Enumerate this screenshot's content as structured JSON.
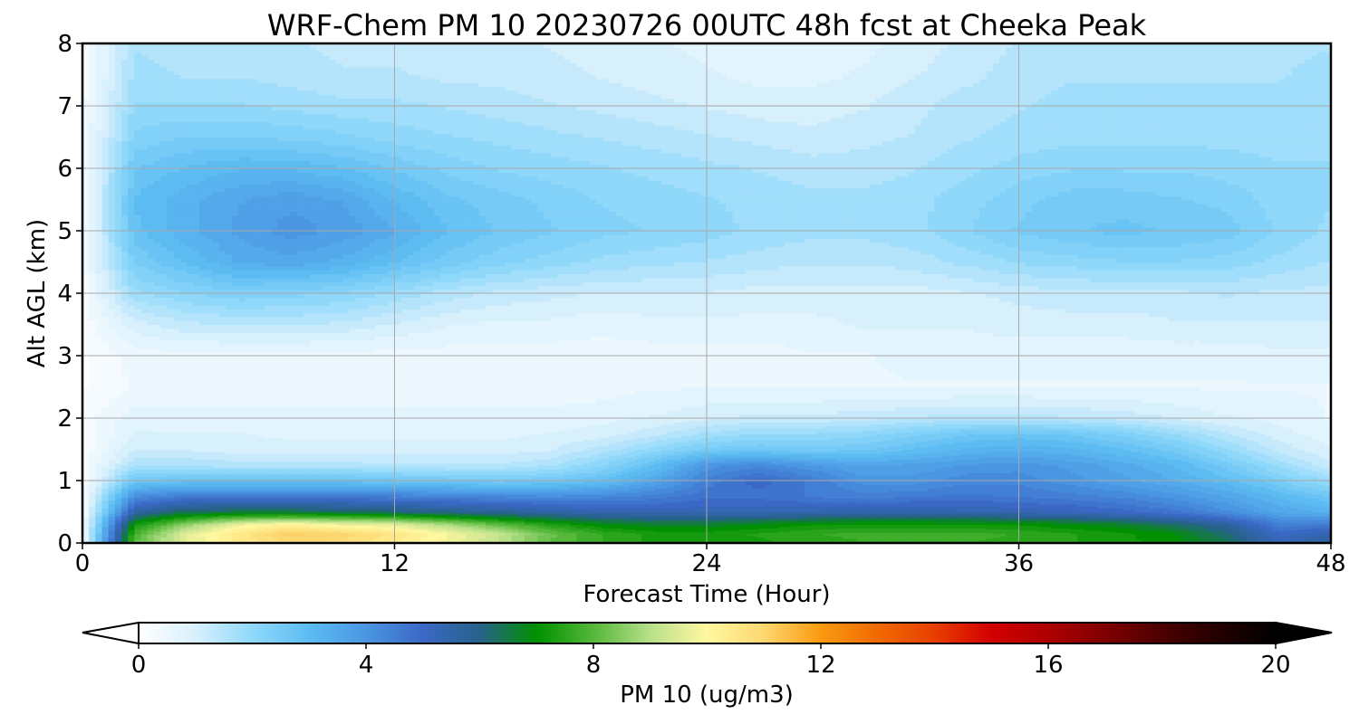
{
  "chart_data": {
    "type": "heatmap",
    "title": "WRF-Chem PM 10  20230726 00UTC 48h fcst at Cheeka Peak",
    "xlabel": "Forecast Time (Hour)",
    "ylabel": "Alt AGL (km)",
    "xlim": [
      0,
      48
    ],
    "ylim": [
      0,
      8
    ],
    "xticks": [
      0,
      12,
      24,
      36,
      48
    ],
    "yticks": [
      0,
      1,
      2,
      3,
      4,
      5,
      6,
      7,
      8
    ],
    "grid": true,
    "x_hours": [
      0,
      2,
      4,
      6,
      8,
      10,
      12,
      14,
      16,
      18,
      20,
      22,
      24,
      26,
      28,
      30,
      32,
      34,
      36,
      38,
      40,
      42,
      44,
      46,
      48
    ],
    "y_km": [
      0,
      0.15,
      0.3,
      0.5,
      0.75,
      1.0,
      1.25,
      1.5,
      1.75,
      2.0,
      2.5,
      3.0,
      3.5,
      4.0,
      4.5,
      5.0,
      5.5,
      6.0,
      6.5,
      7.0,
      7.5,
      8.0
    ],
    "pm10_ugm3": [
      [
        0.3,
        8.2,
        9.6,
        10.4,
        10.8,
        10.8,
        10.3,
        9.8,
        9.1,
        8.1,
        7.6,
        7.3,
        7.2,
        7.3,
        7.5,
        7.6,
        7.6,
        7.6,
        7.6,
        7.4,
        7.2,
        7.0,
        6.4,
        5.3,
        5.8
      ],
      [
        0.3,
        7.8,
        9.6,
        10.5,
        11.2,
        11.0,
        10.6,
        9.9,
        9.2,
        8.2,
        7.6,
        7.3,
        7.3,
        7.4,
        7.6,
        7.7,
        7.7,
        7.7,
        7.6,
        7.4,
        7.2,
        6.9,
        6.2,
        5.0,
        5.4
      ],
      [
        0.3,
        7.2,
        8.6,
        9.8,
        10.2,
        9.8,
        9.6,
        8.9,
        8.1,
        7.4,
        6.9,
        6.7,
        6.7,
        6.9,
        7.1,
        7.2,
        7.2,
        7.2,
        7.1,
        6.9,
        6.7,
        6.3,
        5.7,
        4.5,
        4.6
      ],
      [
        0.2,
        5.6,
        6.4,
        6.5,
        6.5,
        6.4,
        6.2,
        6.0,
        5.8,
        5.6,
        5.4,
        5.3,
        5.3,
        5.3,
        5.4,
        5.5,
        5.5,
        5.4,
        5.3,
        5.2,
        5.0,
        4.7,
        4.2,
        3.6,
        3.3
      ],
      [
        0.2,
        4.2,
        4.6,
        4.6,
        4.6,
        4.6,
        4.5,
        4.4,
        4.3,
        4.2,
        4.3,
        4.5,
        4.8,
        4.8,
        4.6,
        4.5,
        4.6,
        4.7,
        4.6,
        4.5,
        4.3,
        4.0,
        3.6,
        3.1,
        2.6
      ],
      [
        0.2,
        2.6,
        2.8,
        2.8,
        2.8,
        2.8,
        2.7,
        2.6,
        2.5,
        2.6,
        2.9,
        3.6,
        4.5,
        5.0,
        4.6,
        4.0,
        4.0,
        4.3,
        4.3,
        4.0,
        3.7,
        3.4,
        3.0,
        2.4,
        1.8
      ],
      [
        0.2,
        1.6,
        1.6,
        1.5,
        1.5,
        1.5,
        1.4,
        1.4,
        1.4,
        1.6,
        2.1,
        2.9,
        4.0,
        4.3,
        3.9,
        3.6,
        3.7,
        3.9,
        4.0,
        3.8,
        3.5,
        3.1,
        2.5,
        1.8,
        1.2
      ],
      [
        0.2,
        1.1,
        1.1,
        1.0,
        1.0,
        1.0,
        1.0,
        1.0,
        1.0,
        1.1,
        1.5,
        2.0,
        2.5,
        2.6,
        2.5,
        2.6,
        2.9,
        3.2,
        3.3,
        3.2,
        2.9,
        2.5,
        1.9,
        1.3,
        0.9
      ],
      [
        0.2,
        0.9,
        0.9,
        0.9,
        0.8,
        0.8,
        0.8,
        0.8,
        0.8,
        0.9,
        1.0,
        1.3,
        1.7,
        1.9,
        1.9,
        2.0,
        2.3,
        2.6,
        2.7,
        2.6,
        2.3,
        1.9,
        1.4,
        1.0,
        0.7
      ],
      [
        0.2,
        0.8,
        0.7,
        0.7,
        0.7,
        0.7,
        0.7,
        0.7,
        0.7,
        0.7,
        0.8,
        0.9,
        1.1,
        1.2,
        1.2,
        1.3,
        1.4,
        1.5,
        1.5,
        1.4,
        1.3,
        1.1,
        0.9,
        0.8,
        0.6
      ],
      [
        0.1,
        0.4,
        0.5,
        0.5,
        0.5,
        0.5,
        0.5,
        0.5,
        0.5,
        0.5,
        0.5,
        0.6,
        0.6,
        0.6,
        0.6,
        0.6,
        0.6,
        0.6,
        0.6,
        0.6,
        0.6,
        0.6,
        0.6,
        0.6,
        0.6
      ],
      [
        0.1,
        0.5,
        0.5,
        0.5,
        0.5,
        0.5,
        0.5,
        0.5,
        0.5,
        0.5,
        0.5,
        0.5,
        0.5,
        0.5,
        0.6,
        0.6,
        0.7,
        0.7,
        0.7,
        0.7,
        0.7,
        0.7,
        0.7,
        0.8,
        0.8
      ],
      [
        0.2,
        1.0,
        1.3,
        1.4,
        1.4,
        1.3,
        1.1,
        0.9,
        0.8,
        0.8,
        0.7,
        0.8,
        0.8,
        0.8,
        0.8,
        0.9,
        0.9,
        0.9,
        1.0,
        1.0,
        1.0,
        1.1,
        1.1,
        1.1,
        1.1
      ],
      [
        0.2,
        1.8,
        2.1,
        2.3,
        2.2,
        2.1,
        1.8,
        1.5,
        1.3,
        1.2,
        1.1,
        1.1,
        1.1,
        1.0,
        1.0,
        1.0,
        1.0,
        1.1,
        1.2,
        1.3,
        1.3,
        1.3,
        1.4,
        1.3,
        1.3
      ],
      [
        0.3,
        2.4,
        2.9,
        3.4,
        3.5,
        3.3,
        2.9,
        2.5,
        2.2,
        2.0,
        1.8,
        1.7,
        1.6,
        1.5,
        1.4,
        1.4,
        1.5,
        1.7,
        1.9,
        2.0,
        2.1,
        2.1,
        2.0,
        1.8,
        1.6
      ],
      [
        0.3,
        2.8,
        3.3,
        3.7,
        4.0,
        3.8,
        3.4,
        2.9,
        2.6,
        2.4,
        2.2,
        2.1,
        2.0,
        1.8,
        1.7,
        1.7,
        1.8,
        2.1,
        2.4,
        2.6,
        2.7,
        2.6,
        2.5,
        2.1,
        1.8
      ],
      [
        0.3,
        2.9,
        3.3,
        3.6,
        3.8,
        3.6,
        3.1,
        2.7,
        2.5,
        2.3,
        2.1,
        2.0,
        1.9,
        1.8,
        1.7,
        1.7,
        1.8,
        2.0,
        2.3,
        2.5,
        2.5,
        2.4,
        2.3,
        2.0,
        1.9
      ],
      [
        0.3,
        2.6,
        2.9,
        3.1,
        3.1,
        2.9,
        2.6,
        2.3,
        2.1,
        2.0,
        1.9,
        1.8,
        1.7,
        1.6,
        1.5,
        1.5,
        1.6,
        1.8,
        2.0,
        2.1,
        2.1,
        2.1,
        2.0,
        1.9,
        1.9
      ],
      [
        0.3,
        2.2,
        2.4,
        2.4,
        2.3,
        2.2,
        2.0,
        1.9,
        1.8,
        1.7,
        1.6,
        1.5,
        1.4,
        1.3,
        1.2,
        1.3,
        1.4,
        1.6,
        1.7,
        1.8,
        1.8,
        1.8,
        1.8,
        1.8,
        1.8
      ],
      [
        0.3,
        1.9,
        1.9,
        1.9,
        1.8,
        1.7,
        1.7,
        1.6,
        1.5,
        1.4,
        1.3,
        1.2,
        1.1,
        1.0,
        1.0,
        1.1,
        1.3,
        1.5,
        1.6,
        1.7,
        1.7,
        1.7,
        1.7,
        1.7,
        1.8
      ],
      [
        0.2,
        1.7,
        1.6,
        1.6,
        1.5,
        1.4,
        1.4,
        1.3,
        1.3,
        1.2,
        1.1,
        1.0,
        0.9,
        0.8,
        0.8,
        0.9,
        1.1,
        1.3,
        1.5,
        1.6,
        1.6,
        1.6,
        1.6,
        1.6,
        1.7
      ],
      [
        0.2,
        1.6,
        1.5,
        1.5,
        1.4,
        1.3,
        1.3,
        1.2,
        1.2,
        1.1,
        1.0,
        0.9,
        0.8,
        0.7,
        0.7,
        0.8,
        1.0,
        1.2,
        1.4,
        1.5,
        1.5,
        1.5,
        1.5,
        1.6,
        1.6
      ]
    ],
    "colorbar": {
      "label": "PM 10  (ug/m3)",
      "ticks": [
        0,
        4,
        8,
        12,
        16,
        20
      ],
      "range": [
        0,
        20
      ],
      "extend": "both",
      "color_stops": [
        [
          0,
          "#ffffff"
        ],
        [
          1,
          "#d8f0fc"
        ],
        [
          2,
          "#8fd8fa"
        ],
        [
          3,
          "#5cbcf2"
        ],
        [
          4,
          "#4a96e2"
        ],
        [
          5,
          "#3b68c6"
        ],
        [
          6,
          "#27628a"
        ],
        [
          7,
          "#009000"
        ],
        [
          8,
          "#55b83a"
        ],
        [
          9,
          "#b8e08a"
        ],
        [
          10,
          "#fff8a0"
        ],
        [
          11,
          "#fcd770"
        ],
        [
          12,
          "#f99a10"
        ],
        [
          13,
          "#f06a00"
        ],
        [
          14,
          "#e83e00"
        ],
        [
          15,
          "#d20000"
        ],
        [
          16,
          "#ad0000"
        ],
        [
          17,
          "#7f0000"
        ],
        [
          18,
          "#4c0000"
        ],
        [
          19,
          "#220000"
        ],
        [
          20,
          "#000000"
        ]
      ]
    }
  }
}
